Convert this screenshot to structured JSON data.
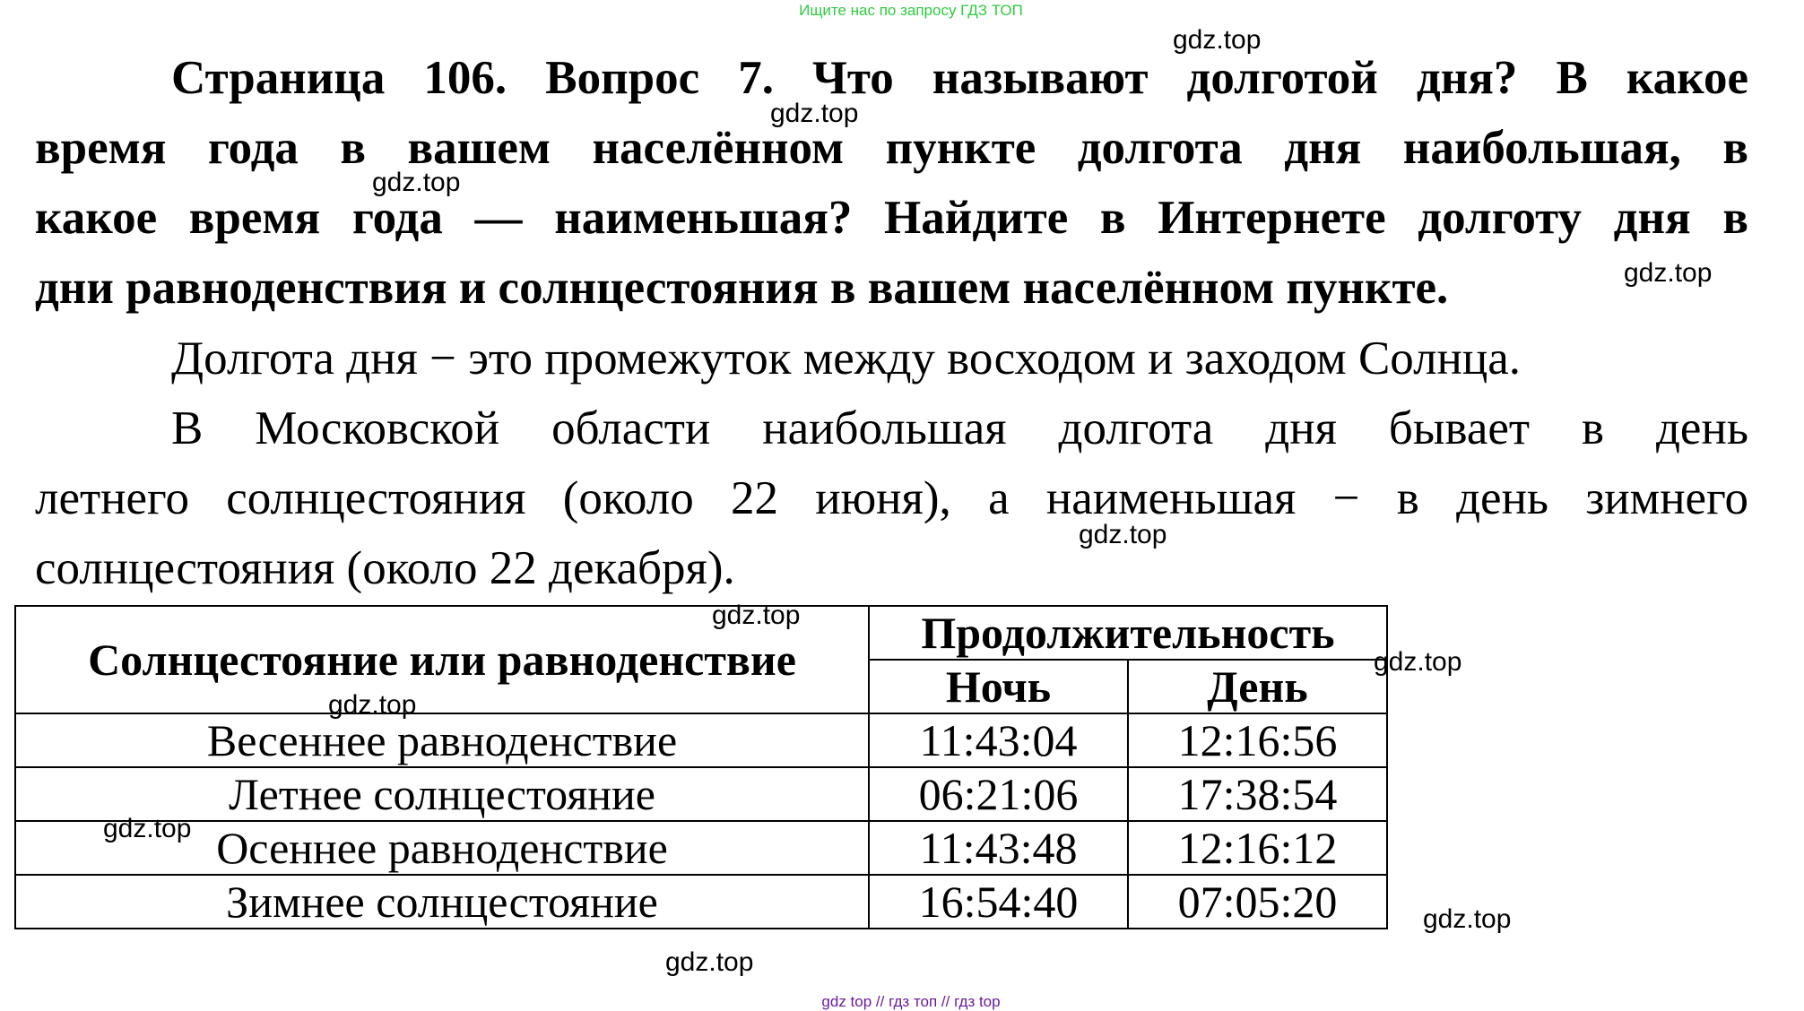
{
  "top_note": "Ищите нас по запросу ГДЗ ТОП",
  "question": {
    "lines": [
      "Страница 106. Вопрос 7.      Что называют долготой дня? В какое",
      "время года в вашем населённом пункте долгота дня наибольшая, в",
      "какое время года — наименьшая? Найдите в Интернете долготу дня в",
      "дни равноденствия и солнцестояния в вашем населённом пункте."
    ]
  },
  "answer": {
    "lines": [
      "Долгота дня − это промежуток между восходом и заходом Солнца.",
      "В Московской области наибольшая долгота дня бывает в день",
      "летнего солнцестояния (около 22 июня), а наименьшая − в день зимнего",
      "солнцестояния (около 22 декабря)."
    ]
  },
  "table": {
    "col_header": "Солнцестояние или равноденствие",
    "group_header": "Продолжительность",
    "night_header": "Ночь",
    "day_header": "День",
    "rows": [
      {
        "name": "Весеннее равноденствие",
        "night": "11:43:04",
        "day": "12:16:56"
      },
      {
        "name": "Летнее солнцестояние",
        "night": "06:21:06",
        "day": "17:38:54"
      },
      {
        "name": "Осеннее равноденствие",
        "night": "11:43:48",
        "day": "12:16:12"
      },
      {
        "name": "Зимнее солнцестояние",
        "night": "16:54:40",
        "day": "07:05:20"
      }
    ]
  },
  "watermark": "gdz.top",
  "bottom_note": "gdz top  //  гдз топ  //  гдз top"
}
